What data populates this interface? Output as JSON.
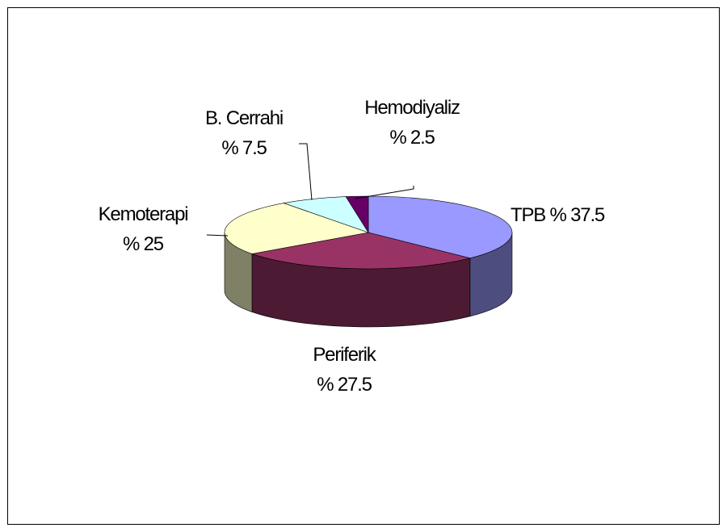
{
  "chart_data": {
    "type": "pie3d",
    "categories": [
      "TPB",
      "Periferik",
      "Kemoterapi",
      "B. Cerrahi",
      "Hemodiyaliz"
    ],
    "values": [
      37.5,
      27.5,
      25,
      7.5,
      2.5
    ],
    "value_labels": [
      "% 37.5",
      "% 27.5",
      "% 25",
      "% 7.5",
      "% 2.5"
    ],
    "colors": [
      "#9999ff",
      "#993366",
      "#ffffcc",
      "#ccffff",
      "#660066"
    ]
  }
}
